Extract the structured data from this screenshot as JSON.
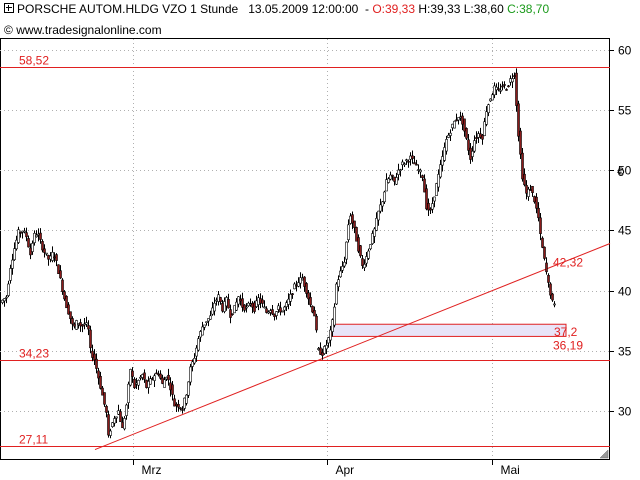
{
  "header": {
    "title": "PORSCHE AUTOM.HLDG VZO 1 Stunde",
    "datetime": "13.05.2009 12:00:00",
    "open": "O:39,33",
    "high": "H:39,33",
    "low": "L:38,60",
    "close": "C:38,70",
    "source_prefix": "©",
    "source": "www.tradesignalonline.com"
  },
  "colors": {
    "candle_down": "#8b1a1a",
    "candle_up": "#ffffff",
    "support_line": "#e02020",
    "zone_fill": "#e8e4f8",
    "grid": "#b0b0b0"
  },
  "chart_data": {
    "type": "candlestick",
    "title": "PORSCHE AUTOM.HLDG VZO 1 Stunde",
    "y_axis": {
      "ticks": [
        30,
        35,
        40,
        45,
        50,
        55,
        60
      ],
      "unit": "€",
      "position": "right",
      "range": [
        26,
        61
      ]
    },
    "x_axis": {
      "labels": [
        "Mrz",
        "Apr",
        "Mai"
      ]
    },
    "grid": true,
    "horizontal_levels": [
      {
        "value": 58.52,
        "label": "58,52"
      },
      {
        "value": 34.23,
        "label": "34,23"
      },
      {
        "value": 27.11,
        "label": "27,11"
      }
    ],
    "trendline": {
      "start": [
        "Feb",
        26.8
      ],
      "end": [
        "Mai",
        43.9
      ]
    },
    "zone": {
      "top": 37.2,
      "bottom": 36.19,
      "labels": [
        "37,2",
        "36,19"
      ]
    },
    "last_label": {
      "value": 42.32,
      "label": "42,32"
    },
    "price_path": [
      [
        0,
        39.0
      ],
      [
        6,
        39.5
      ],
      [
        10,
        42
      ],
      [
        14,
        43.5
      ],
      [
        18,
        44.8
      ],
      [
        22,
        45
      ],
      [
        26,
        44.5
      ],
      [
        30,
        43
      ],
      [
        33,
        44.5
      ],
      [
        37,
        44.8
      ],
      [
        41,
        43.8
      ],
      [
        45,
        43.0
      ],
      [
        49,
        42.5
      ],
      [
        53,
        43.2
      ],
      [
        57,
        42.0
      ],
      [
        61,
        40.5
      ],
      [
        65,
        39.0
      ],
      [
        69,
        38.0
      ],
      [
        73,
        36.8
      ],
      [
        77,
        37.5
      ],
      [
        81,
        37.0
      ],
      [
        85,
        37.3
      ],
      [
        89,
        36.5
      ],
      [
        90,
        35.0
      ],
      [
        94,
        34.3
      ],
      [
        98,
        32.8
      ],
      [
        102,
        31.3
      ],
      [
        106,
        29.8
      ],
      [
        108,
        27.8
      ],
      [
        110,
        28.5
      ],
      [
        114,
        29.5
      ],
      [
        118,
        30.0
      ],
      [
        122,
        28.5
      ],
      [
        126,
        30.5
      ],
      [
        130,
        33.5
      ],
      [
        134,
        32.0
      ],
      [
        138,
        32.5
      ],
      [
        142,
        33.0
      ],
      [
        146,
        32.0
      ],
      [
        150,
        32.5
      ],
      [
        154,
        33.0
      ],
      [
        158,
        33.2
      ],
      [
        162,
        32.2
      ],
      [
        166,
        33.0
      ],
      [
        170,
        32.0
      ],
      [
        174,
        30.5
      ],
      [
        178,
        30.5
      ],
      [
        182,
        30.2
      ],
      [
        186,
        31.5
      ],
      [
        190,
        33.5
      ],
      [
        194,
        34.5
      ],
      [
        198,
        36.0
      ],
      [
        202,
        37.0
      ],
      [
        206,
        37.5
      ],
      [
        210,
        37.8
      ],
      [
        214,
        39.0
      ],
      [
        218,
        39.5
      ],
      [
        222,
        38.5
      ],
      [
        226,
        39.2
      ],
      [
        230,
        38.0
      ],
      [
        234,
        38.5
      ],
      [
        238,
        39.5
      ],
      [
        242,
        38.7
      ],
      [
        246,
        38.5
      ],
      [
        250,
        39.0
      ],
      [
        254,
        38.5
      ],
      [
        258,
        39.3
      ],
      [
        262,
        38.8
      ],
      [
        266,
        38.2
      ],
      [
        270,
        38.5
      ],
      [
        274,
        38.0
      ],
      [
        278,
        38.5
      ],
      [
        282,
        38.3
      ],
      [
        286,
        38.8
      ],
      [
        290,
        39.5
      ],
      [
        294,
        40.3
      ],
      [
        298,
        40.8
      ],
      [
        302,
        41.0
      ],
      [
        306,
        40.0
      ],
      [
        310,
        38.8
      ],
      [
        314,
        38.0
      ],
      [
        316,
        36.5
      ],
      [
        318,
        35.0
      ],
      [
        322,
        34.8
      ],
      [
        326,
        35.5
      ],
      [
        330,
        36.5
      ],
      [
        333,
        37.8
      ],
      [
        336,
        40.5
      ],
      [
        340,
        41.5
      ],
      [
        344,
        42.5
      ],
      [
        348,
        45.5
      ],
      [
        350,
        46.3
      ],
      [
        354,
        45.0
      ],
      [
        358,
        43.5
      ],
      [
        362,
        42.0
      ],
      [
        366,
        42.8
      ],
      [
        370,
        44.0
      ],
      [
        374,
        45.0
      ],
      [
        378,
        46.5
      ],
      [
        382,
        47.5
      ],
      [
        386,
        49.0
      ],
      [
        390,
        49.5
      ],
      [
        394,
        49.0
      ],
      [
        398,
        50.0
      ],
      [
        402,
        50.5
      ],
      [
        406,
        50.8
      ],
      [
        410,
        51.0
      ],
      [
        414,
        50.5
      ],
      [
        418,
        50.0
      ],
      [
        422,
        49.5
      ],
      [
        426,
        47.0
      ],
      [
        430,
        46.5
      ],
      [
        434,
        48.0
      ],
      [
        438,
        49.5
      ],
      [
        442,
        51.0
      ],
      [
        446,
        52.5
      ],
      [
        450,
        53.3
      ],
      [
        454,
        54.0
      ],
      [
        458,
        54.5
      ],
      [
        462,
        54.0
      ],
      [
        466,
        52.5
      ],
      [
        470,
        51.0
      ],
      [
        474,
        52.5
      ],
      [
        478,
        53.0
      ],
      [
        482,
        52.8
      ],
      [
        486,
        55.0
      ],
      [
        490,
        56.0
      ],
      [
        494,
        56.8
      ],
      [
        498,
        56.5
      ],
      [
        502,
        57.0
      ],
      [
        506,
        56.8
      ],
      [
        510,
        57.5
      ],
      [
        514,
        58.0
      ],
      [
        518,
        53.0
      ],
      [
        522,
        49.5
      ],
      [
        526,
        48.0
      ],
      [
        530,
        48.5
      ],
      [
        534,
        47.5
      ],
      [
        538,
        46.0
      ],
      [
        540,
        44.5
      ],
      [
        544,
        42.5
      ],
      [
        546,
        41.5
      ],
      [
        548,
        40.5
      ],
      [
        550,
        39.8
      ],
      [
        552,
        39.0
      ],
      [
        554,
        38.7
      ]
    ]
  }
}
